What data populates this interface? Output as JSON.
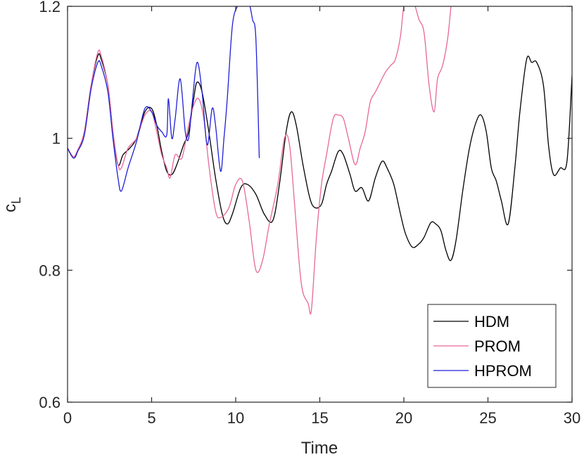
{
  "chart_data": {
    "type": "line",
    "xlabel": "Time",
    "ylabel": {
      "main": "c",
      "sub": "L"
    },
    "xlim": [
      0,
      30
    ],
    "ylim": [
      0.6,
      1.2
    ],
    "xticks": [
      0,
      5,
      10,
      15,
      20,
      25,
      30
    ],
    "xtick_labels": [
      "0",
      "5",
      "10",
      "15",
      "20",
      "25",
      "30"
    ],
    "yticks": [
      0.6,
      0.8,
      1.0,
      1.2
    ],
    "ytick_labels": [
      "0.6",
      "0.8",
      "1",
      "1.2"
    ],
    "grid": false,
    "legend_position": "bottom-right",
    "series": [
      {
        "name": "HDM",
        "color": "#000000",
        "x": [
          0,
          0.35,
          0.6,
          1.0,
          1.4,
          1.8,
          2.0,
          2.4,
          2.7,
          3.0,
          3.3,
          3.7,
          4.1,
          4.6,
          5.0,
          5.3,
          5.6,
          5.9,
          6.2,
          6.5,
          6.9,
          7.2,
          7.5,
          7.7,
          8.0,
          8.4,
          8.8,
          9.2,
          9.5,
          9.8,
          10.3,
          10.7,
          11.2,
          11.7,
          12.2,
          12.6,
          13.0,
          13.3,
          13.6,
          14.0,
          14.4,
          14.7,
          15.1,
          15.4,
          15.7,
          16.1,
          16.4,
          16.8,
          17.1,
          17.5,
          17.9,
          18.3,
          18.7,
          19.0,
          19.4,
          19.8,
          20.1,
          20.5,
          20.9,
          21.2,
          21.6,
          21.9,
          22.2,
          22.5,
          22.8,
          23.1,
          23.5,
          23.9,
          24.3,
          24.6,
          24.9,
          25.2,
          25.5,
          25.8,
          26.2,
          26.6,
          26.9,
          27.3,
          27.6,
          27.9,
          28.3,
          28.6,
          28.9,
          29.3,
          29.7,
          30.0
        ],
        "y": [
          0.985,
          0.97,
          0.98,
          1.01,
          1.08,
          1.125,
          1.12,
          1.08,
          1.01,
          0.96,
          0.975,
          0.985,
          1.0,
          1.04,
          1.045,
          1.02,
          0.98,
          0.95,
          0.945,
          0.96,
          0.99,
          1.01,
          1.06,
          1.085,
          1.07,
          1.01,
          0.94,
          0.885,
          0.87,
          0.885,
          0.925,
          0.93,
          0.915,
          0.885,
          0.875,
          0.93,
          1.01,
          1.04,
          1.02,
          0.96,
          0.91,
          0.895,
          0.9,
          0.93,
          0.95,
          0.98,
          0.975,
          0.945,
          0.92,
          0.925,
          0.905,
          0.94,
          0.965,
          0.955,
          0.93,
          0.885,
          0.855,
          0.835,
          0.84,
          0.85,
          0.872,
          0.87,
          0.86,
          0.83,
          0.815,
          0.845,
          0.92,
          0.985,
          1.025,
          1.035,
          1.01,
          0.955,
          0.935,
          0.905,
          0.87,
          0.955,
          1.04,
          1.12,
          1.115,
          1.115,
          1.08,
          0.99,
          0.945,
          0.955,
          0.965,
          1.095
        ]
      },
      {
        "name": "PROM",
        "color": "#e8679a",
        "x": [
          0,
          0.35,
          0.6,
          1.0,
          1.4,
          1.8,
          2.0,
          2.4,
          2.7,
          3.0,
          3.2,
          3.6,
          4.1,
          4.6,
          5.0,
          5.3,
          5.6,
          5.9,
          6.1,
          6.4,
          6.8,
          7.2,
          7.5,
          7.8,
          8.1,
          8.4,
          8.8,
          9.1,
          9.6,
          10.0,
          10.4,
          10.8,
          11.2,
          11.6,
          12.0,
          12.5,
          12.9,
          13.2,
          13.5,
          13.9,
          14.3,
          14.5,
          14.8,
          15.1,
          15.4,
          15.8,
          16.1,
          16.4,
          16.7,
          17.1,
          17.4,
          17.7,
          18.0,
          18.3,
          18.6,
          18.9,
          19.2,
          19.5,
          19.8,
          20.0,
          20.3,
          20.6,
          20.9,
          21.2,
          21.5,
          21.8,
          22.0,
          22.3,
          22.6,
          22.8
        ],
        "y": [
          0.985,
          0.972,
          0.982,
          1.01,
          1.08,
          1.13,
          1.125,
          1.08,
          1.01,
          0.96,
          0.955,
          0.985,
          1.0,
          1.035,
          1.04,
          1.01,
          0.975,
          0.955,
          0.94,
          0.975,
          0.97,
          1.02,
          1.05,
          1.06,
          1.03,
          0.96,
          0.89,
          0.88,
          0.895,
          0.93,
          0.935,
          0.875,
          0.8,
          0.815,
          0.87,
          0.93,
          1.0,
          0.99,
          0.9,
          0.78,
          0.75,
          0.74,
          0.85,
          0.93,
          0.975,
          1.03,
          1.035,
          1.03,
          1.0,
          0.96,
          0.985,
          1.01,
          1.055,
          1.07,
          1.085,
          1.1,
          1.11,
          1.12,
          1.155,
          1.2,
          1.21,
          1.205,
          1.18,
          1.16,
          1.08,
          1.04,
          1.09,
          1.11,
          1.15,
          1.2
        ]
      },
      {
        "name": "HPROM",
        "color": "#1f1fd6",
        "x": [
          0,
          0.35,
          0.6,
          1.0,
          1.4,
          1.8,
          2.0,
          2.4,
          2.7,
          3.0,
          3.2,
          3.6,
          4.1,
          4.6,
          5.0,
          5.3,
          5.6,
          5.9,
          6.0,
          6.2,
          6.4,
          6.7,
          7.0,
          7.2,
          7.4,
          7.7,
          8.0,
          8.3,
          8.6,
          8.8,
          9.1,
          9.3,
          9.5,
          9.8,
          10.1,
          10.4,
          10.6,
          10.8,
          11.0,
          11.2,
          11.4
        ],
        "y": [
          0.985,
          0.97,
          0.98,
          1.005,
          1.075,
          1.115,
          1.11,
          1.07,
          1.0,
          0.94,
          0.92,
          0.955,
          0.995,
          1.045,
          1.04,
          1.02,
          1.01,
          1.005,
          1.06,
          1.0,
          1.03,
          1.09,
          1.01,
          1.0,
          1.05,
          1.115,
          1.07,
          0.99,
          1.045,
          1.02,
          0.95,
          1.0,
          1.06,
          1.17,
          1.2,
          1.205,
          1.21,
          1.205,
          1.18,
          1.15,
          0.97
        ]
      }
    ]
  }
}
